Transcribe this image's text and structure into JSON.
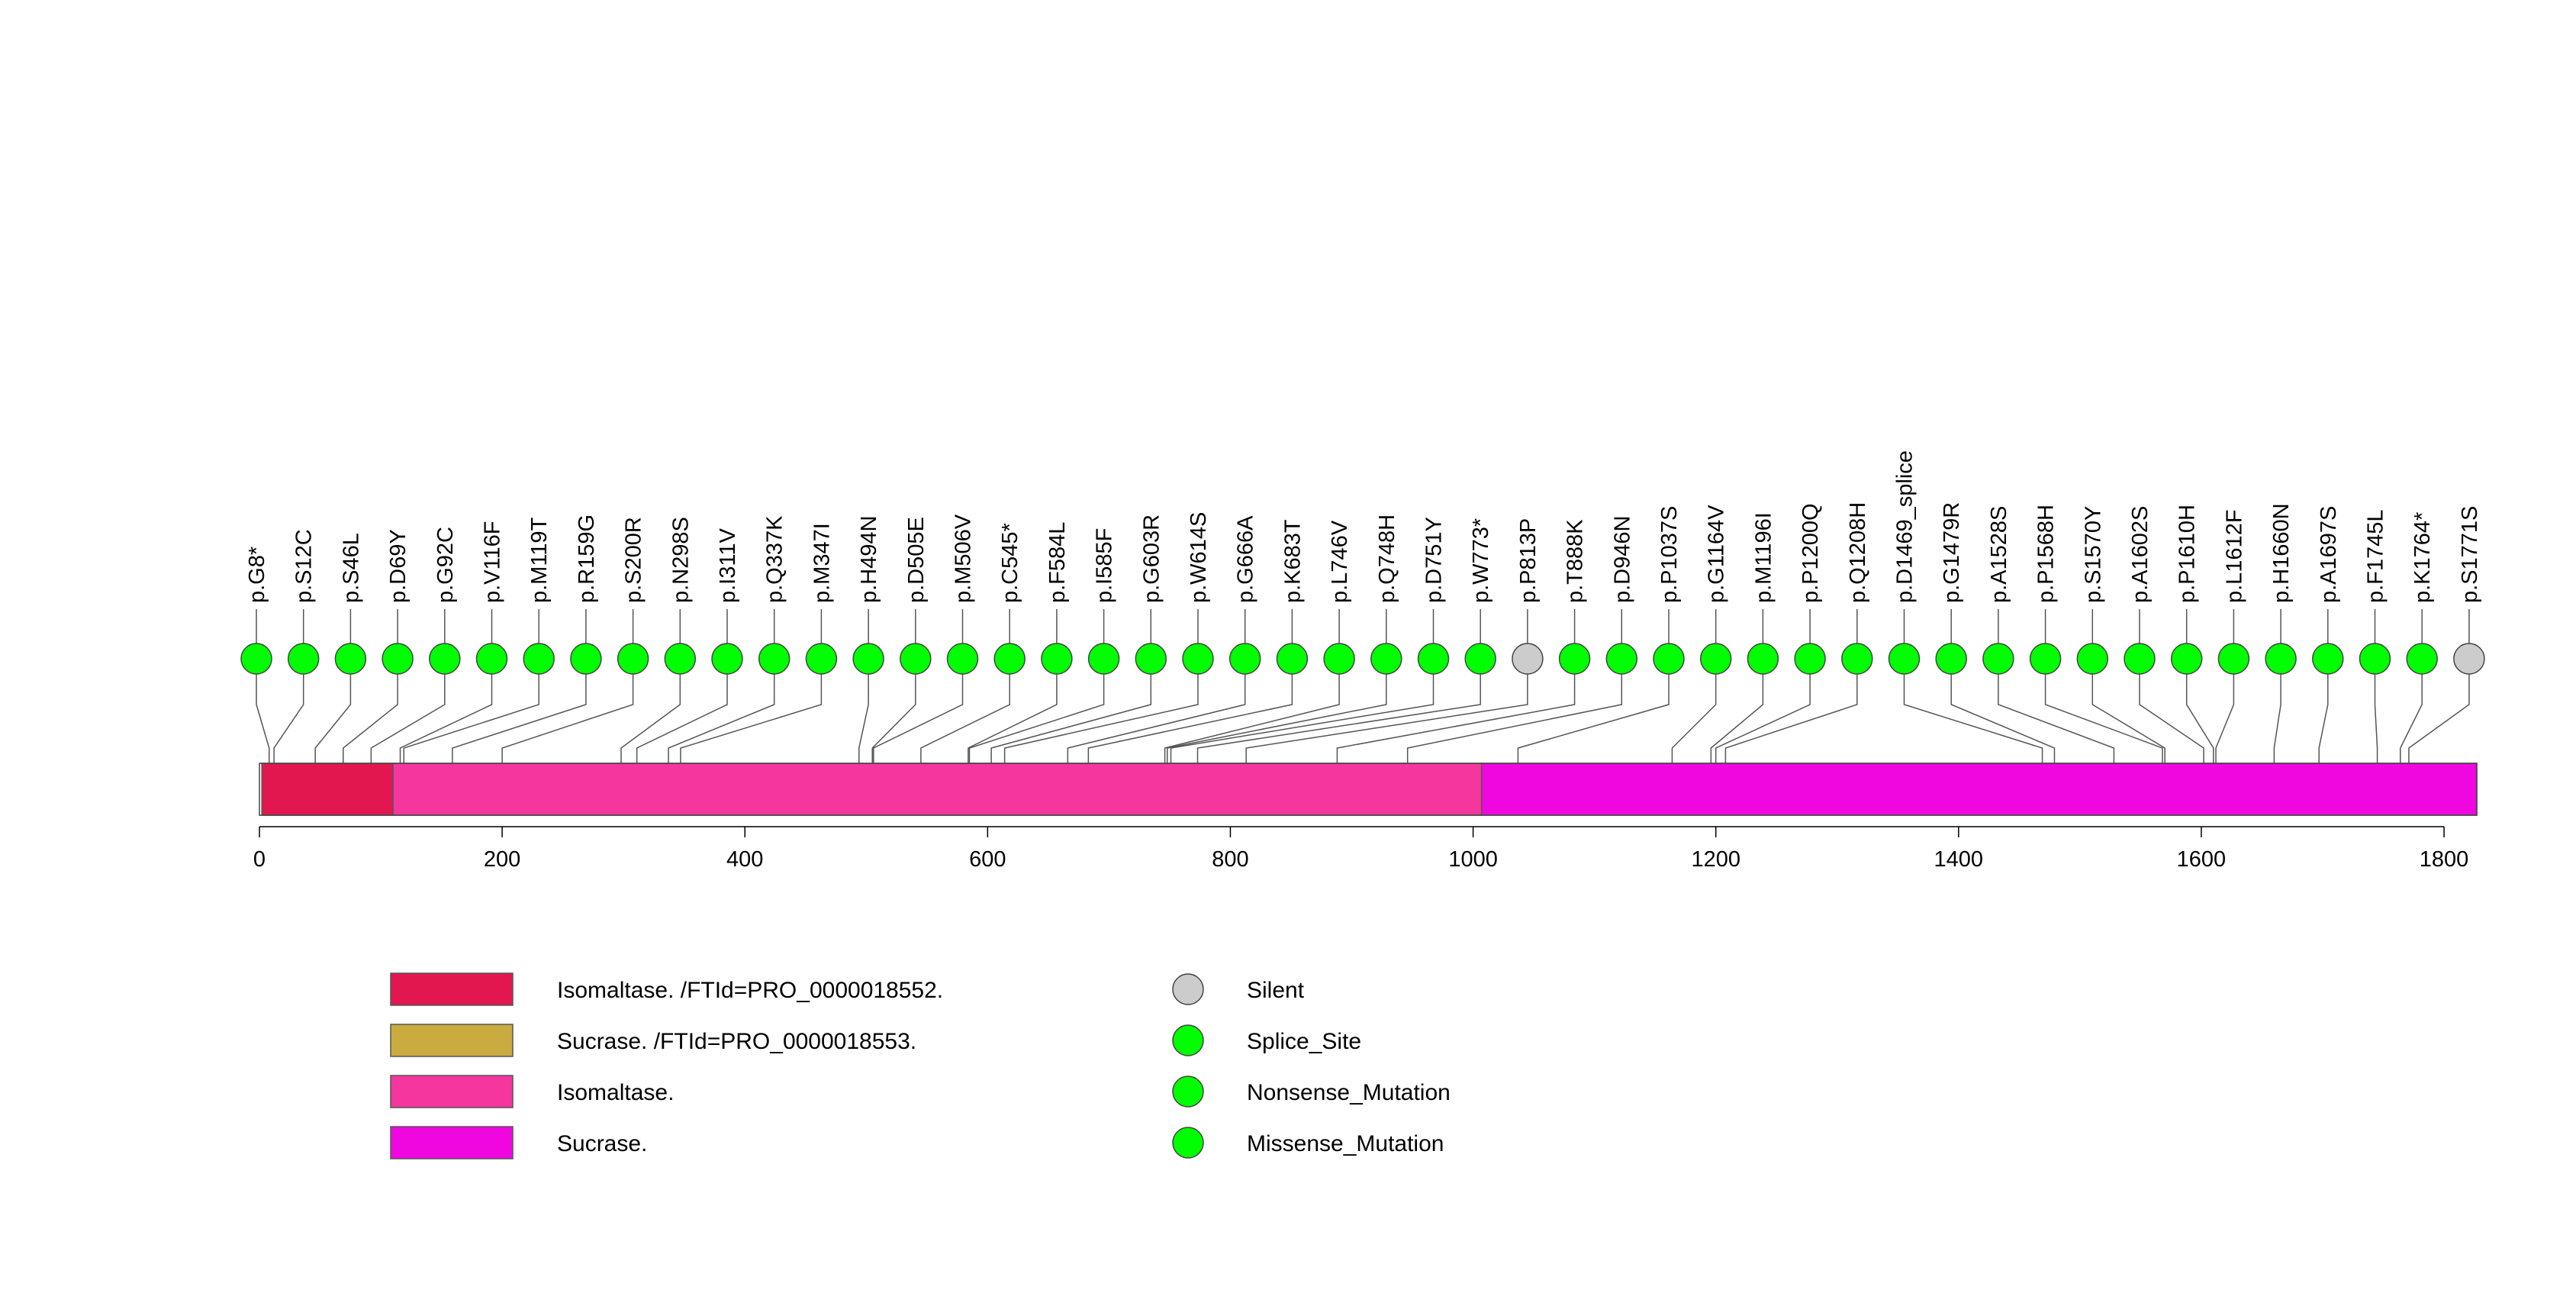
{
  "chart_data": {
    "type": "lollipop",
    "title": "",
    "xlabel": "",
    "ylabel": "",
    "xlim": [
      0,
      1827
    ],
    "xticks": [
      0,
      200,
      400,
      600,
      800,
      1000,
      1200,
      1400,
      1600,
      1800
    ],
    "domains": [
      {
        "name": "Isomaltase. /FTId=PRO_0000018552.",
        "start": 2,
        "end": 110,
        "color": "#e3174f"
      },
      {
        "name": "Isomaltase.",
        "start": 110,
        "end": 1007,
        "color": "#f4369e"
      },
      {
        "name": "Sucrase.",
        "start": 1007,
        "end": 1827,
        "color": "#f007e0"
      }
    ],
    "mutations": [
      {
        "label": "p.G8*",
        "position": 8,
        "type": "Nonsense_Mutation"
      },
      {
        "label": "p.S12C",
        "position": 12,
        "type": "Missense_Mutation"
      },
      {
        "label": "p.S46L",
        "position": 46,
        "type": "Missense_Mutation"
      },
      {
        "label": "p.D69Y",
        "position": 69,
        "type": "Missense_Mutation"
      },
      {
        "label": "p.G92C",
        "position": 92,
        "type": "Missense_Mutation"
      },
      {
        "label": "p.V116F",
        "position": 116,
        "type": "Missense_Mutation"
      },
      {
        "label": "p.M119T",
        "position": 119,
        "type": "Missense_Mutation"
      },
      {
        "label": "p.R159G",
        "position": 159,
        "type": "Missense_Mutation"
      },
      {
        "label": "p.S200R",
        "position": 200,
        "type": "Missense_Mutation"
      },
      {
        "label": "p.N298S",
        "position": 298,
        "type": "Missense_Mutation"
      },
      {
        "label": "p.I311V",
        "position": 311,
        "type": "Missense_Mutation"
      },
      {
        "label": "p.Q337K",
        "position": 337,
        "type": "Missense_Mutation"
      },
      {
        "label": "p.M347I",
        "position": 347,
        "type": "Missense_Mutation"
      },
      {
        "label": "p.H494N",
        "position": 494,
        "type": "Missense_Mutation"
      },
      {
        "label": "p.D505E",
        "position": 505,
        "type": "Missense_Mutation"
      },
      {
        "label": "p.M506V",
        "position": 506,
        "type": "Missense_Mutation"
      },
      {
        "label": "p.C545*",
        "position": 545,
        "type": "Nonsense_Mutation"
      },
      {
        "label": "p.F584L",
        "position": 584,
        "type": "Missense_Mutation"
      },
      {
        "label": "p.I585F",
        "position": 585,
        "type": "Missense_Mutation"
      },
      {
        "label": "p.G603R",
        "position": 603,
        "type": "Missense_Mutation"
      },
      {
        "label": "p.W614S",
        "position": 614,
        "type": "Missense_Mutation"
      },
      {
        "label": "p.G666A",
        "position": 666,
        "type": "Missense_Mutation"
      },
      {
        "label": "p.K683T",
        "position": 683,
        "type": "Missense_Mutation"
      },
      {
        "label": "p.L746V",
        "position": 746,
        "type": "Missense_Mutation"
      },
      {
        "label": "p.Q748H",
        "position": 748,
        "type": "Missense_Mutation"
      },
      {
        "label": "p.D751Y",
        "position": 751,
        "type": "Missense_Mutation"
      },
      {
        "label": "p.W773*",
        "position": 773,
        "type": "Nonsense_Mutation"
      },
      {
        "label": "p.P813P",
        "position": 813,
        "type": "Silent"
      },
      {
        "label": "p.T888K",
        "position": 888,
        "type": "Missense_Mutation"
      },
      {
        "label": "p.D946N",
        "position": 946,
        "type": "Missense_Mutation"
      },
      {
        "label": "p.P1037S",
        "position": 1037,
        "type": "Missense_Mutation"
      },
      {
        "label": "p.G1164V",
        "position": 1164,
        "type": "Missense_Mutation"
      },
      {
        "label": "p.M1196I",
        "position": 1196,
        "type": "Missense_Mutation"
      },
      {
        "label": "p.P1200Q",
        "position": 1200,
        "type": "Missense_Mutation"
      },
      {
        "label": "p.Q1208H",
        "position": 1208,
        "type": "Missense_Mutation"
      },
      {
        "label": "p.D1469_splice",
        "position": 1469,
        "type": "Splice_Site"
      },
      {
        "label": "p.G1479R",
        "position": 1479,
        "type": "Missense_Mutation"
      },
      {
        "label": "p.A1528S",
        "position": 1528,
        "type": "Missense_Mutation"
      },
      {
        "label": "p.P1568H",
        "position": 1568,
        "type": "Missense_Mutation"
      },
      {
        "label": "p.S1570Y",
        "position": 1570,
        "type": "Missense_Mutation"
      },
      {
        "label": "p.A1602S",
        "position": 1602,
        "type": "Missense_Mutation"
      },
      {
        "label": "p.P1610H",
        "position": 1610,
        "type": "Missense_Mutation"
      },
      {
        "label": "p.L1612F",
        "position": 1612,
        "type": "Missense_Mutation"
      },
      {
        "label": "p.H1660N",
        "position": 1660,
        "type": "Missense_Mutation"
      },
      {
        "label": "p.A1697S",
        "position": 1697,
        "type": "Missense_Mutation"
      },
      {
        "label": "p.F1745L",
        "position": 1745,
        "type": "Missense_Mutation"
      },
      {
        "label": "p.K1764*",
        "position": 1764,
        "type": "Nonsense_Mutation"
      },
      {
        "label": "p.S1771S",
        "position": 1771,
        "type": "Silent"
      }
    ],
    "legend_domains": [
      {
        "label": "Isomaltase. /FTId=PRO_0000018552.",
        "color": "#e3174f"
      },
      {
        "label": "Sucrase. /FTId=PRO_0000018553.",
        "color": "#c9ab3f"
      },
      {
        "label": "Isomaltase.",
        "color": "#f4369e"
      },
      {
        "label": "Sucrase.",
        "color": "#f007e0"
      }
    ],
    "legend_mutations": [
      {
        "label": "Silent",
        "color": "#cccccc"
      },
      {
        "label": "Splice_Site",
        "color": "#00ff00"
      },
      {
        "label": "Nonsense_Mutation",
        "color": "#00ff00"
      },
      {
        "label": "Missense_Mutation",
        "color": "#00ff00"
      }
    ]
  }
}
